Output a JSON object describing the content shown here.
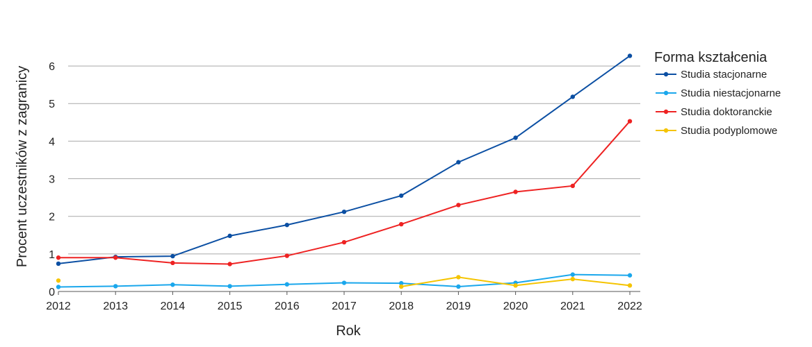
{
  "chart_data": {
    "type": "line",
    "xlabel": "Rok",
    "ylabel": "Procent uczestników z zagranicy",
    "x": [
      2012,
      2013,
      2014,
      2015,
      2016,
      2017,
      2018,
      2019,
      2020,
      2021,
      2022
    ],
    "xlim": [
      2012,
      2022
    ],
    "ylim": [
      0,
      6.5
    ],
    "yticks": [
      0,
      1,
      2,
      3,
      4,
      5,
      6
    ],
    "grid": "horizontal",
    "legend": {
      "title": "Forma kształcenia",
      "placement": "right"
    },
    "series": [
      {
        "name": "Studia stacjonarne",
        "color": "#0b4fa3",
        "values": [
          0.74,
          0.92,
          0.94,
          1.48,
          1.77,
          2.12,
          2.55,
          3.44,
          4.09,
          5.18,
          6.27
        ]
      },
      {
        "name": "Studia niestacjonarne",
        "color": "#1aa7ec",
        "values": [
          0.12,
          0.14,
          0.18,
          0.14,
          0.19,
          0.23,
          0.22,
          0.13,
          0.23,
          0.45,
          0.43
        ]
      },
      {
        "name": "Studia doktoranckie",
        "color": "#ee2222",
        "values": [
          0.9,
          0.9,
          0.76,
          0.73,
          0.95,
          1.31,
          1.79,
          2.3,
          2.65,
          2.81,
          4.53
        ]
      },
      {
        "name": "Studia podyplomowe",
        "color": "#f5c400",
        "values": [
          0.29,
          null,
          null,
          null,
          null,
          null,
          0.13,
          0.38,
          0.16,
          0.33,
          0.16
        ]
      }
    ]
  }
}
